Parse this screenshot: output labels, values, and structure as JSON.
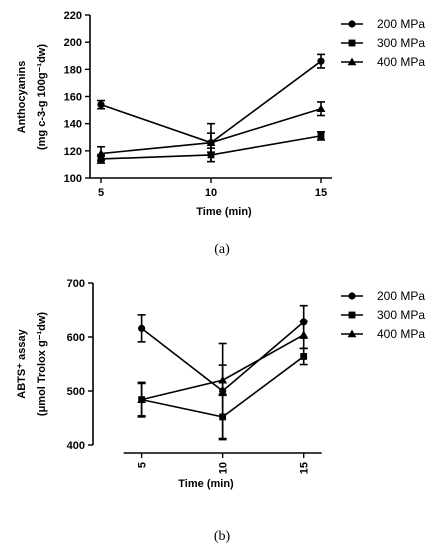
{
  "chart_data": [
    {
      "id": "a",
      "type": "line",
      "caption": "(a)",
      "xlabel": "Time (min)",
      "ylabel_line1": "Anthocyanins",
      "ylabel_line2": "(mg c-3-g 100g⁻¹dw)",
      "x": [
        5,
        10,
        15
      ],
      "x_ticks": [
        "5",
        "10",
        "15"
      ],
      "xlim": [
        4.5,
        15.5
      ],
      "ylim": [
        100,
        220
      ],
      "y_ticks": [
        100,
        120,
        140,
        160,
        180,
        200,
        220
      ],
      "grid": false,
      "legend_position": "top-right",
      "series": [
        {
          "name": "200 MPa",
          "marker": "circle",
          "values": [
            154,
            126,
            186
          ],
          "errors": [
            3,
            7,
            5
          ]
        },
        {
          "name": "300 MPa",
          "marker": "square",
          "values": [
            114,
            117,
            131
          ],
          "errors": [
            3,
            5,
            3
          ]
        },
        {
          "name": "400 MPa",
          "marker": "triangle",
          "values": [
            118,
            126,
            151
          ],
          "errors": [
            5,
            14,
            5
          ]
        }
      ]
    },
    {
      "id": "b",
      "type": "line",
      "caption": "(b)",
      "xlabel": "Time (min)",
      "ylabel_line1": "ABTS⁺ assay",
      "ylabel_line2": "(μmol Trolox g⁻¹dw)",
      "x": [
        5,
        10,
        15
      ],
      "x_ticks": [
        "5",
        "10",
        "15"
      ],
      "xlim": [
        2,
        16.5
      ],
      "ylim": [
        400,
        700
      ],
      "y_ticks": [
        400,
        500,
        600,
        700
      ],
      "grid": false,
      "legend_position": "top-right",
      "series": [
        {
          "name": "200 MPa",
          "marker": "circle",
          "values": [
            616,
            500,
            628
          ],
          "errors": [
            25,
            88,
            30
          ]
        },
        {
          "name": "300 MPa",
          "marker": "square",
          "values": [
            484,
            452,
            564
          ],
          "errors": [
            32,
            42,
            15
          ]
        },
        {
          "name": "400 MPa",
          "marker": "triangle",
          "values": [
            484,
            520,
            604
          ],
          "errors": [
            30,
            28,
            25
          ]
        }
      ]
    }
  ]
}
